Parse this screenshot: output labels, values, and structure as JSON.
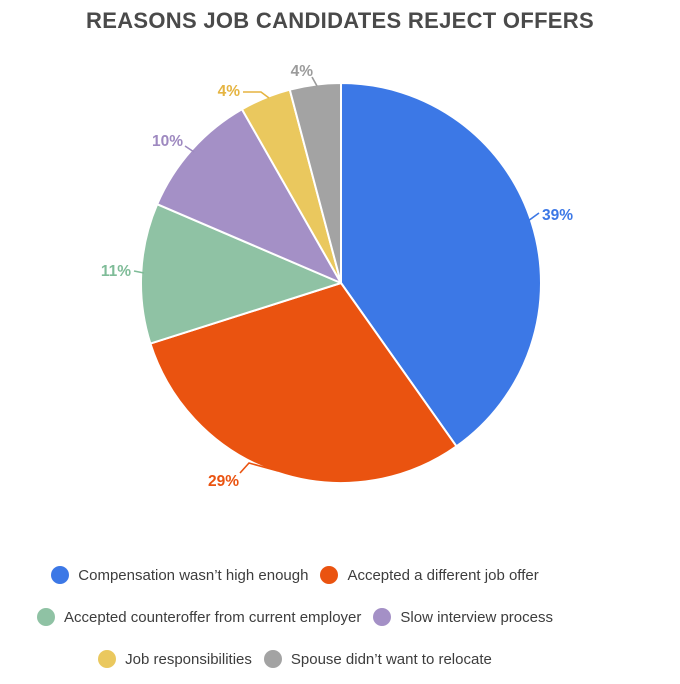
{
  "title": "REASONS JOB CANDIDATES REJECT OFFERS",
  "colors": {
    "background": "#FFFFFF",
    "title_text": "#4A4A4A",
    "legend_text": "#3D3D3D",
    "slice_gap_stroke": "#FFFFFF"
  },
  "chart_data": {
    "type": "pie",
    "title": "REASONS JOB CANDIDATES REJECT OFFERS",
    "legend_position": "bottom",
    "start_angle_deg": 0,
    "direction": "clockwise",
    "value_unit": "%",
    "slices": [
      {
        "label": "Compensation wasn’t high enough",
        "value": 39,
        "display": "39%",
        "color": "#3C78E6",
        "label_color": "#3C78E6"
      },
      {
        "label": "Accepted a different job offer",
        "value": 29,
        "display": "29%",
        "color": "#EA5310",
        "label_color": "#EA5310"
      },
      {
        "label": "Accepted counteroffer from current employer",
        "value": 11,
        "display": "11%",
        "color": "#8FC2A4",
        "label_color": "#7FBC98"
      },
      {
        "label": "Slow interview process",
        "value": 10,
        "display": "10%",
        "color": "#A490C6",
        "label_color": "#9E89C0"
      },
      {
        "label": "Job responsibilities",
        "value": 4,
        "display": "4%",
        "color": "#EAC85E",
        "label_color": "#E5B441"
      },
      {
        "label": "Spouse didn’t want to relocate",
        "value": 4,
        "display": "4%",
        "color": "#A3A3A3",
        "label_color": "#9B9B9B"
      }
    ],
    "legend_rows": [
      [
        0,
        1
      ],
      [
        2,
        3
      ],
      [
        4,
        5
      ]
    ]
  }
}
